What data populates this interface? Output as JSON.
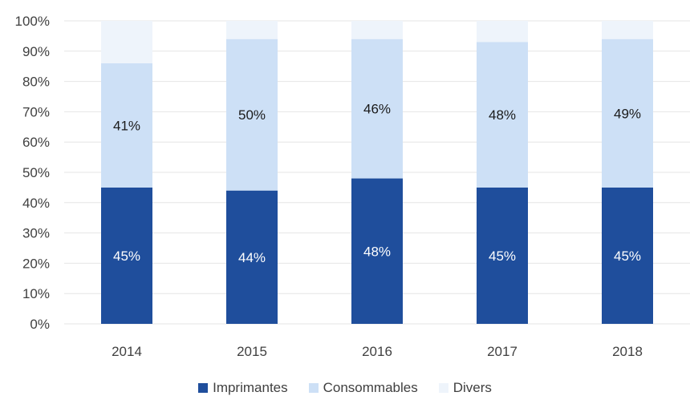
{
  "chart_data": {
    "type": "bar",
    "stacked": true,
    "categories": [
      "2014",
      "2015",
      "2016",
      "2017",
      "2018"
    ],
    "series": [
      {
        "name": "Imprimantes",
        "values": [
          45,
          44,
          48,
          45,
          45
        ],
        "labels": [
          "45%",
          "44%",
          "48%",
          "45%",
          "45%"
        ],
        "color": "#1f4e9c",
        "label_color": "#ffffff"
      },
      {
        "name": "Consommables",
        "values": [
          41,
          50,
          46,
          48,
          49
        ],
        "labels": [
          "41%",
          "50%",
          "46%",
          "48%",
          "49%"
        ],
        "color": "#cde0f6",
        "label_color": "#1a1a1a"
      },
      {
        "name": "Divers",
        "values": [
          14,
          6,
          6,
          7,
          6
        ],
        "labels": [
          "",
          "",
          "",
          "",
          ""
        ],
        "color": "#eef4fb",
        "label_color": "#1a1a1a"
      }
    ],
    "ylim": [
      0,
      100
    ],
    "yticks": [
      "0%",
      "10%",
      "20%",
      "30%",
      "40%",
      "50%",
      "60%",
      "70%",
      "80%",
      "90%",
      "100%"
    ],
    "grid": true,
    "legend_position": "bottom"
  }
}
